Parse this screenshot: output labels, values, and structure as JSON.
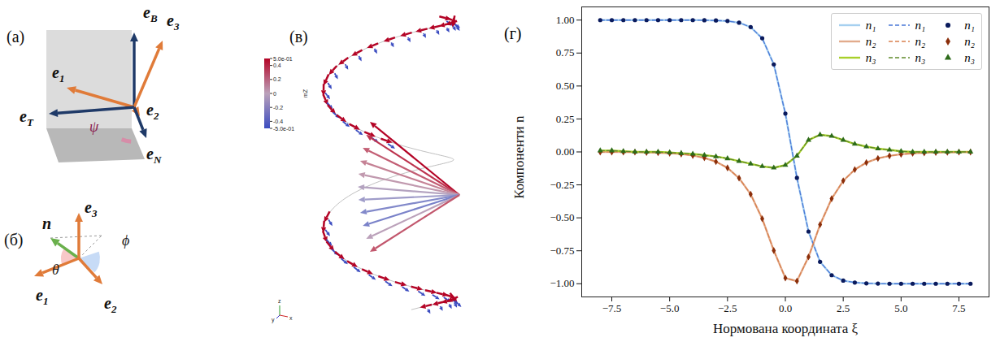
{
  "panels": {
    "a": {
      "label": "(а)",
      "vectors": [
        {
          "name": "e",
          "sub": "B"
        },
        {
          "name": "e",
          "sub": "3"
        },
        {
          "name": "e",
          "sub": "1"
        },
        {
          "name": "e",
          "sub": "T"
        },
        {
          "name": "e",
          "sub": "2"
        },
        {
          "name": "e",
          "sub": "N"
        }
      ],
      "angle": "ψ"
    },
    "b": {
      "label": "(б)",
      "vectors": [
        {
          "name": "n"
        },
        {
          "name": "e",
          "sub": "3"
        },
        {
          "name": "e",
          "sub": "1"
        },
        {
          "name": "e",
          "sub": "2"
        }
      ],
      "angles": [
        "θ",
        "ϕ"
      ]
    },
    "c": {
      "label": "(в)",
      "colorbar": {
        "title": "mZ",
        "range": [
          -0.5,
          0.5
        ],
        "ticks": [
          {
            "value": 0.5,
            "label": "5.0e-01"
          },
          0.4,
          0.2,
          0,
          -0.2,
          -0.4,
          {
            "value": -0.5,
            "label": "-5.0e-01"
          }
        ]
      },
      "triad": [
        "z",
        "y",
        "x"
      ]
    },
    "d": {
      "label": "(г)"
    }
  },
  "chart_data": {
    "type": "line",
    "x_label": "Нормована координата ξ",
    "y_label": "Компоненти n⃗",
    "x": [
      -8,
      -7.5,
      -7,
      -6.5,
      -6,
      -5.5,
      -5,
      -4.5,
      -4,
      -3.5,
      -3,
      -2.5,
      -2,
      -1.5,
      -1,
      -0.5,
      0,
      0.5,
      1,
      1.5,
      2,
      2.5,
      3,
      3.5,
      4,
      4.5,
      5,
      5.5,
      6,
      6.5,
      7,
      7.5,
      8
    ],
    "xlim": [
      -8.8,
      8.8
    ],
    "xticks": [
      {
        "value": -7.5,
        "label": "−7.5"
      },
      {
        "value": -5,
        "label": "−5.0"
      },
      {
        "value": -2.5,
        "label": "−2.5"
      },
      {
        "value": 0,
        "label": "0.0"
      },
      {
        "value": 2.5,
        "label": "2.5"
      },
      {
        "value": 5,
        "label": "5.0"
      },
      {
        "value": 7.5,
        "label": "7.5"
      }
    ],
    "ylim": [
      -1.1,
      1.1
    ],
    "yticks": [
      {
        "value": -1,
        "label": "−1.00"
      },
      {
        "value": -0.75,
        "label": "−0.75"
      },
      {
        "value": -0.5,
        "label": "−0.50"
      },
      {
        "value": -0.25,
        "label": "−0.25"
      },
      {
        "value": 0,
        "label": "0.00"
      },
      {
        "value": 0.25,
        "label": "0.25"
      },
      {
        "value": 0.5,
        "label": "0.50"
      },
      {
        "value": 0.75,
        "label": "0.75"
      },
      {
        "value": 1,
        "label": "1.00"
      }
    ],
    "grid": false,
    "legend": "upper right",
    "series": [
      {
        "name": "n₁",
        "type": "line",
        "line_style": "solid",
        "color": "#a6d0f0",
        "values": [
          1,
          1,
          1,
          1,
          1,
          1,
          1,
          1,
          1,
          0.999,
          0.997,
          0.993,
          0.98,
          0.947,
          0.862,
          0.664,
          0.291,
          -0.197,
          -0.604,
          -0.834,
          -0.935,
          -0.976,
          -0.991,
          -0.997,
          -0.999,
          -1,
          -1,
          -1,
          -1,
          -1,
          -1,
          -1,
          -1
        ]
      },
      {
        "name": "n₂",
        "type": "line",
        "line_style": "solid",
        "color": "#e2ab8c",
        "values": [
          -0.001,
          -0.001,
          -0.001,
          -0.002,
          -0.004,
          -0.006,
          -0.01,
          -0.016,
          -0.027,
          -0.045,
          -0.074,
          -0.121,
          -0.199,
          -0.321,
          -0.507,
          -0.748,
          -0.957,
          -0.98,
          -0.797,
          -0.552,
          -0.355,
          -0.219,
          -0.134,
          -0.081,
          -0.049,
          -0.03,
          -0.018,
          -0.011,
          -0.007,
          -0.004,
          -0.003,
          -0.002,
          -0.001
        ]
      },
      {
        "name": "n₃",
        "type": "line",
        "line_style": "solid",
        "color": "#a8d02a",
        "values": [
          0.01,
          0.01,
          0.005,
          0,
          0,
          0,
          -0.005,
          -0.01,
          -0.015,
          -0.025,
          -0.035,
          -0.05,
          -0.07,
          -0.09,
          -0.11,
          -0.12,
          -0.1,
          -0.03,
          0.09,
          0.13,
          0.12,
          0.09,
          0.06,
          0.04,
          0.025,
          0.015,
          0.005,
          0,
          0,
          0,
          0,
          0,
          0
        ]
      },
      {
        "name": "n₁",
        "type": "line",
        "line_style": "dashed",
        "color": "#4a78d8",
        "values": [
          1,
          1,
          1,
          1,
          1,
          1,
          1,
          1,
          1,
          0.999,
          0.997,
          0.993,
          0.98,
          0.947,
          0.862,
          0.664,
          0.291,
          -0.197,
          -0.604,
          -0.834,
          -0.935,
          -0.976,
          -0.991,
          -0.997,
          -0.999,
          -1,
          -1,
          -1,
          -1,
          -1,
          -1,
          -1,
          -1
        ]
      },
      {
        "name": "n₂",
        "type": "line",
        "line_style": "dashed",
        "color": "#d9804e",
        "values": [
          -0.001,
          -0.001,
          -0.001,
          -0.002,
          -0.004,
          -0.006,
          -0.01,
          -0.016,
          -0.027,
          -0.045,
          -0.074,
          -0.121,
          -0.199,
          -0.321,
          -0.507,
          -0.748,
          -0.957,
          -0.98,
          -0.797,
          -0.552,
          -0.355,
          -0.219,
          -0.134,
          -0.081,
          -0.049,
          -0.03,
          -0.018,
          -0.011,
          -0.007,
          -0.004,
          -0.003,
          -0.002,
          -0.001
        ]
      },
      {
        "name": "n₃",
        "type": "line",
        "line_style": "dashed",
        "color": "#5f8a2a",
        "values": [
          0.01,
          0.01,
          0.005,
          0,
          0,
          0,
          -0.005,
          -0.01,
          -0.015,
          -0.025,
          -0.035,
          -0.05,
          -0.07,
          -0.09,
          -0.11,
          -0.12,
          -0.1,
          -0.03,
          0.09,
          0.13,
          0.12,
          0.09,
          0.06,
          0.04,
          0.025,
          0.015,
          0.005,
          0,
          0,
          0,
          0,
          0,
          0
        ]
      },
      {
        "name": "n₁",
        "type": "scatter",
        "marker": "circle",
        "color": "#0a1a5c",
        "values": [
          1,
          1,
          1,
          1,
          1,
          1,
          1,
          1,
          1,
          0.999,
          0.997,
          0.993,
          0.98,
          0.947,
          0.862,
          0.664,
          0.291,
          -0.197,
          -0.604,
          -0.834,
          -0.935,
          -0.976,
          -0.991,
          -0.997,
          -0.999,
          -1,
          -1,
          -1,
          -1,
          -1,
          -1,
          -1,
          -1
        ]
      },
      {
        "name": "n₂",
        "type": "scatter",
        "marker": "diamond",
        "color": "#8b2e0a",
        "values": [
          -0.001,
          -0.001,
          -0.001,
          -0.002,
          -0.004,
          -0.006,
          -0.01,
          -0.016,
          -0.027,
          -0.045,
          -0.074,
          -0.121,
          -0.199,
          -0.321,
          -0.507,
          -0.748,
          -0.957,
          -0.98,
          -0.797,
          -0.552,
          -0.355,
          -0.219,
          -0.134,
          -0.081,
          -0.049,
          -0.03,
          -0.018,
          -0.011,
          -0.007,
          -0.004,
          -0.003,
          -0.002,
          -0.001
        ]
      },
      {
        "name": "n₃",
        "type": "scatter",
        "marker": "triangle",
        "color": "#2d6b1a",
        "values": [
          0.01,
          0.01,
          0.005,
          0,
          0,
          0,
          -0.005,
          -0.01,
          -0.015,
          -0.025,
          -0.035,
          -0.05,
          -0.07,
          -0.09,
          -0.11,
          -0.12,
          -0.1,
          -0.03,
          0.09,
          0.13,
          0.12,
          0.09,
          0.06,
          0.04,
          0.025,
          0.015,
          0.005,
          0,
          0,
          0,
          0,
          0,
          0
        ]
      }
    ]
  }
}
